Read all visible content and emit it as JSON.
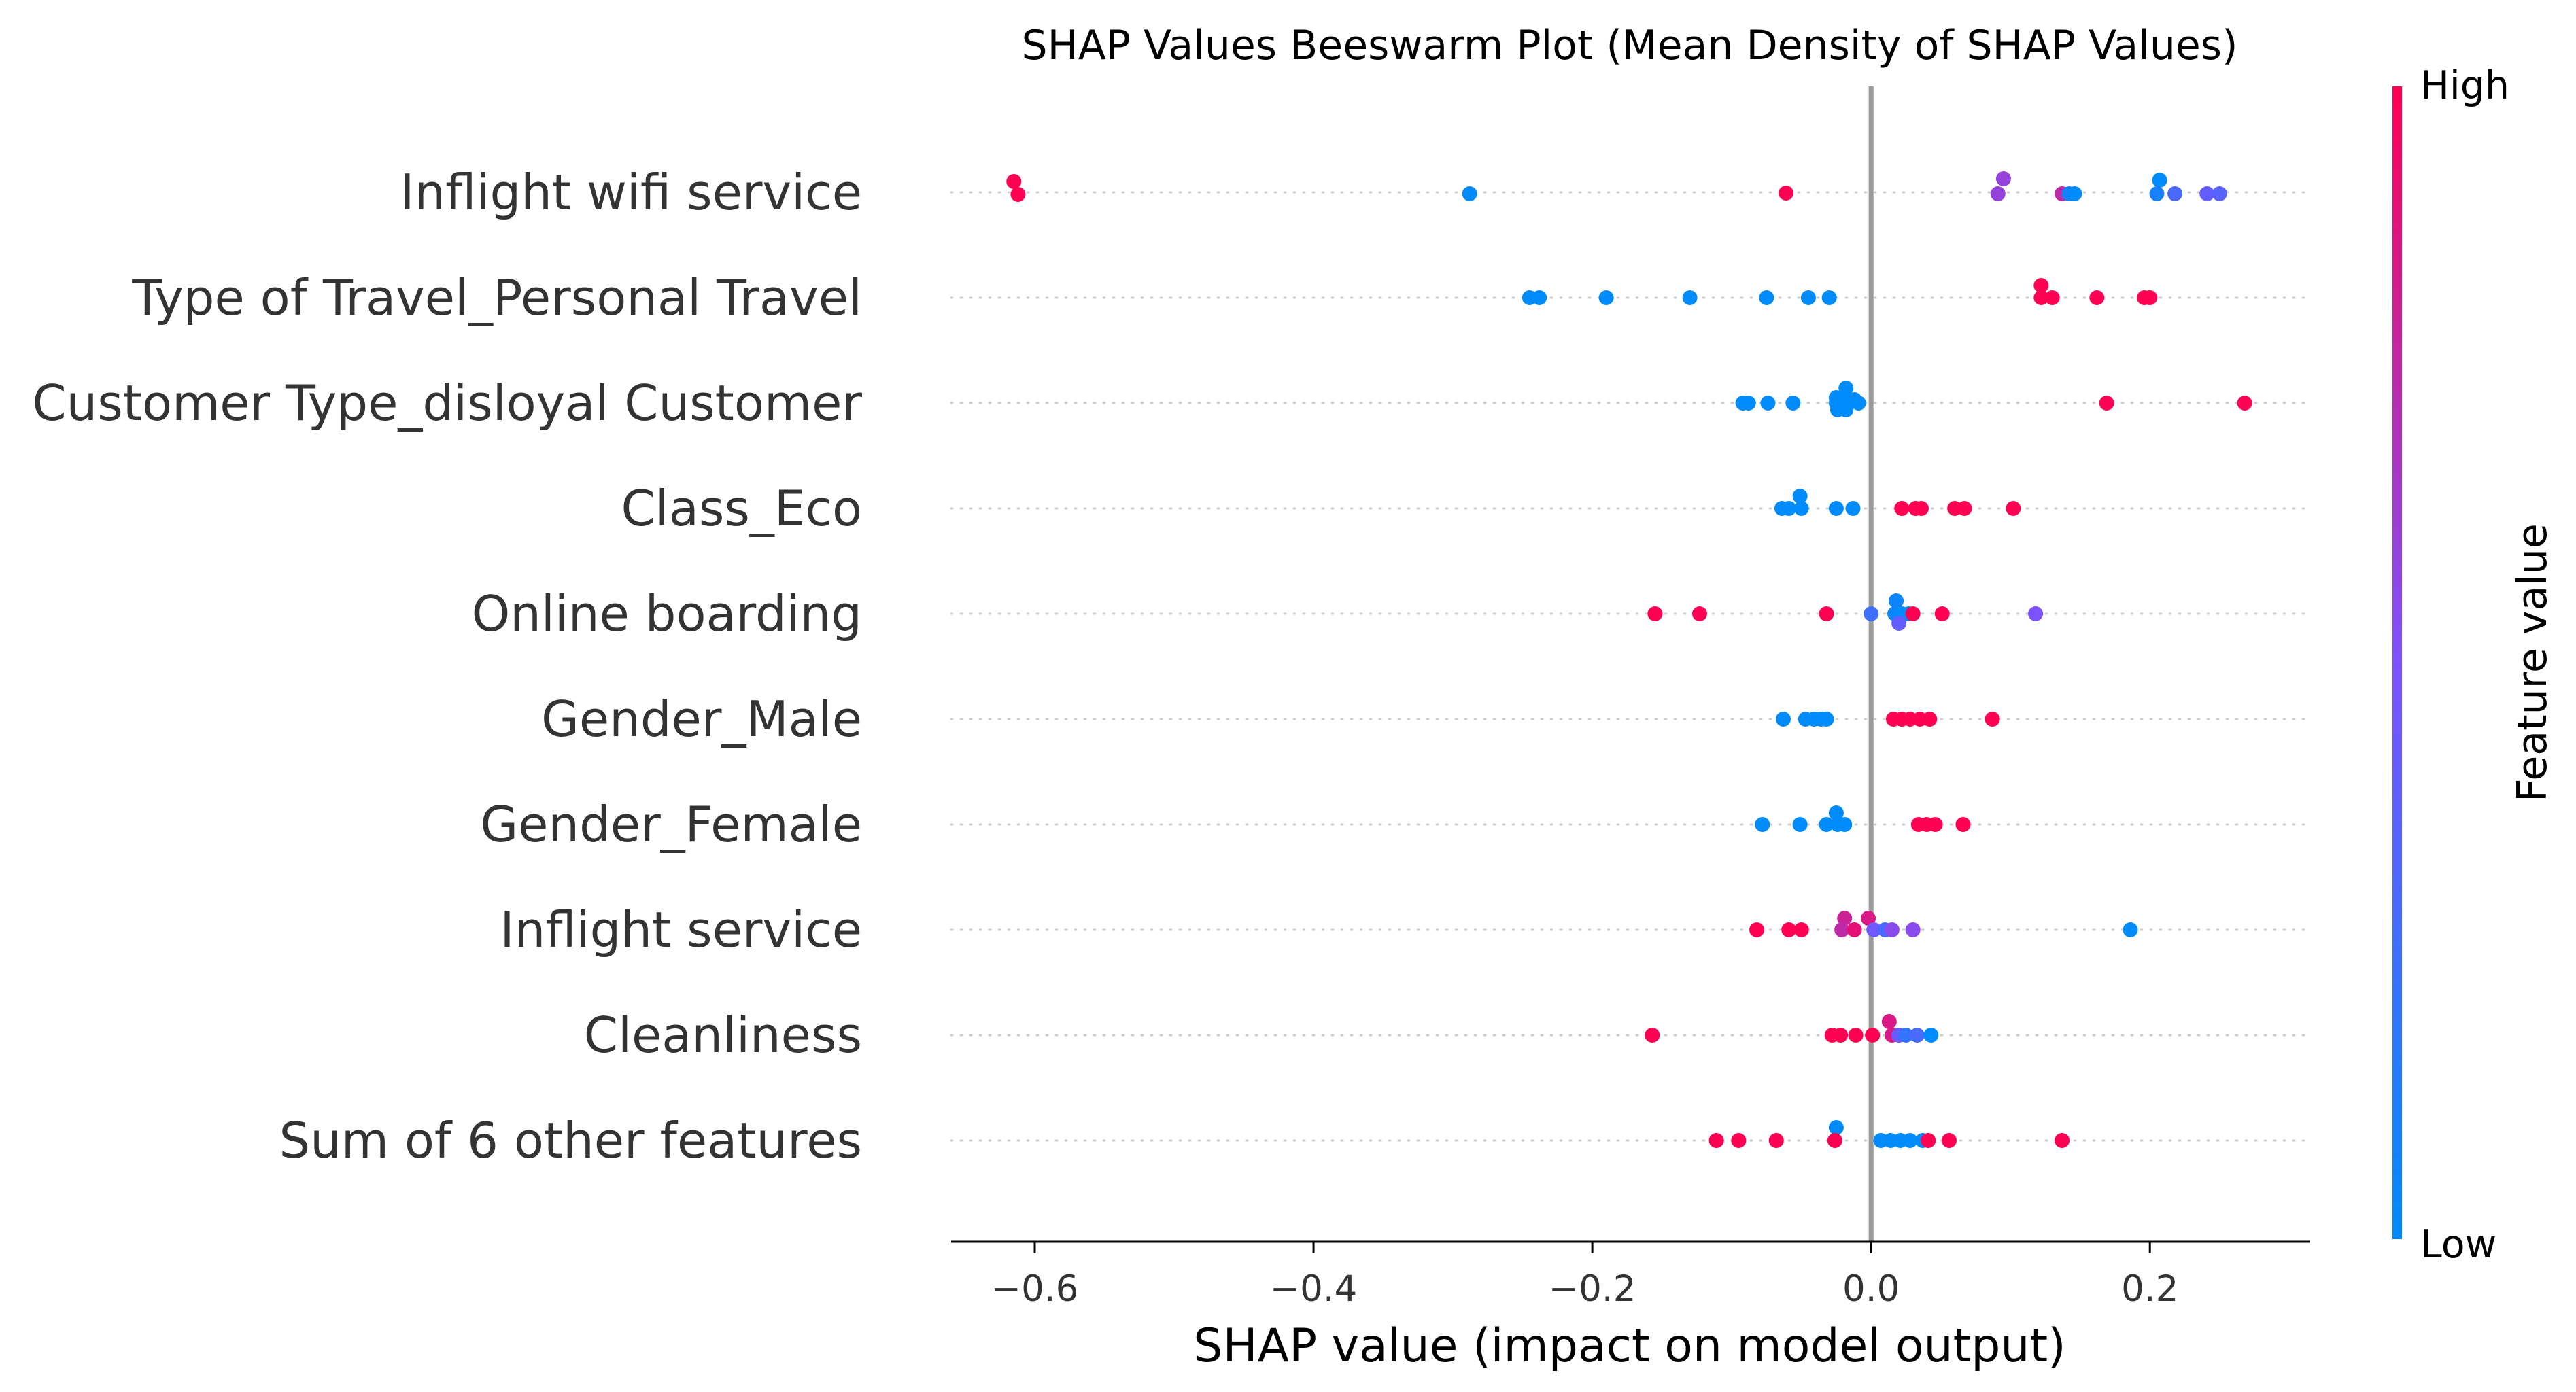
{
  "chart_data": {
    "type": "scatter",
    "title": "SHAP Values Beeswarm Plot (Mean Density of SHAP Values)",
    "xlabel": "SHAP value (impact on model output)",
    "xlim": [
      -0.66,
      0.315
    ],
    "xticks": [
      -0.6,
      -0.4,
      -0.2,
      0.0,
      0.2
    ],
    "xtick_labels": [
      "−0.6",
      "−0.4",
      "−0.2",
      "0.0",
      "0.2"
    ],
    "grid": "dotted horizontal rows",
    "zero_line": 0.0,
    "colorbar": {
      "label": "Feature value",
      "high_label": "High",
      "low_label": "Low",
      "low_color": "#008bfb",
      "mid_color": "#7c52ff",
      "high_color": "#ff0052"
    },
    "features": [
      {
        "name": "Inflight wifi service",
        "points": [
          [
            -0.615,
            1,
            0.16
          ],
          [
            -0.612,
            1,
            -0.03
          ],
          [
            -0.288,
            0,
            -0.02
          ],
          [
            -0.061,
            1,
            -0.01
          ],
          [
            0.095,
            0.6,
            0.2
          ],
          [
            0.091,
            0.6,
            -0.02
          ],
          [
            0.137,
            0.75,
            -0.02
          ],
          [
            0.142,
            0.1,
            -0.02
          ],
          [
            0.146,
            0,
            -0.02
          ],
          [
            0.207,
            0,
            0.18
          ],
          [
            0.205,
            0.1,
            -0.02
          ],
          [
            0.218,
            0.3,
            -0.02
          ],
          [
            0.241,
            0.4,
            -0.02
          ],
          [
            0.25,
            0.35,
            -0.02
          ]
        ]
      },
      {
        "name": "Type of Travel_Personal Travel",
        "points": [
          [
            -0.245,
            0,
            0
          ],
          [
            -0.238,
            0,
            0
          ],
          [
            -0.19,
            0,
            0
          ],
          [
            -0.13,
            0,
            0
          ],
          [
            -0.075,
            0,
            0
          ],
          [
            -0.045,
            0,
            0
          ],
          [
            -0.03,
            0,
            0
          ],
          [
            0.122,
            1,
            0.18
          ],
          [
            0.122,
            1,
            0
          ],
          [
            0.13,
            1,
            0
          ],
          [
            0.162,
            1,
            0
          ],
          [
            0.196,
            1,
            0
          ],
          [
            0.2,
            1,
            0
          ]
        ]
      },
      {
        "name": "Customer Type_disloyal Customer",
        "points": [
          [
            -0.092,
            0,
            0
          ],
          [
            -0.088,
            0,
            0
          ],
          [
            -0.074,
            0,
            0
          ],
          [
            -0.056,
            0,
            0
          ],
          [
            -0.025,
            0,
            0.08
          ],
          [
            -0.019,
            0,
            0.08
          ],
          [
            -0.018,
            0,
            0.22
          ],
          [
            -0.025,
            0,
            0
          ],
          [
            -0.019,
            0,
            0
          ],
          [
            -0.012,
            0,
            0.05
          ],
          [
            -0.009,
            0,
            0
          ],
          [
            -0.024,
            0,
            -0.1
          ],
          [
            -0.018,
            0,
            -0.1
          ],
          [
            0.169,
            1,
            0
          ],
          [
            0.268,
            1,
            0
          ]
        ]
      },
      {
        "name": "Class_Eco",
        "points": [
          [
            -0.051,
            0,
            0.18
          ],
          [
            -0.064,
            0,
            0
          ],
          [
            -0.059,
            0,
            0
          ],
          [
            -0.05,
            0,
            0
          ],
          [
            -0.025,
            0,
            0
          ],
          [
            -0.013,
            0,
            0
          ],
          [
            0.022,
            1,
            0
          ],
          [
            0.032,
            1,
            0
          ],
          [
            0.036,
            1,
            0
          ],
          [
            0.06,
            1,
            0
          ],
          [
            0.067,
            1,
            0
          ],
          [
            0.102,
            1,
            0
          ]
        ]
      },
      {
        "name": "Online boarding",
        "points": [
          [
            -0.155,
            1,
            0
          ],
          [
            -0.123,
            1,
            0
          ],
          [
            -0.032,
            1,
            0
          ],
          [
            0.0,
            0.25,
            0
          ],
          [
            0.018,
            0.05,
            0.19
          ],
          [
            0.017,
            0.05,
            0
          ],
          [
            0.022,
            0,
            0
          ],
          [
            0.027,
            0,
            0
          ],
          [
            0.03,
            1,
            0
          ],
          [
            0.02,
            0.4,
            -0.14
          ],
          [
            0.051,
            1,
            0
          ],
          [
            0.118,
            0.5,
            0
          ]
        ]
      },
      {
        "name": "Gender_Male",
        "points": [
          [
            -0.063,
            0,
            0
          ],
          [
            -0.047,
            0,
            0
          ],
          [
            -0.041,
            0,
            0
          ],
          [
            -0.036,
            0,
            0
          ],
          [
            -0.032,
            0,
            0
          ],
          [
            0.016,
            1,
            0
          ],
          [
            0.022,
            1,
            0
          ],
          [
            0.028,
            1,
            0
          ],
          [
            0.035,
            1,
            0
          ],
          [
            0.042,
            1,
            0
          ],
          [
            0.087,
            1,
            0
          ]
        ]
      },
      {
        "name": "Gender_Female",
        "points": [
          [
            -0.078,
            0,
            0
          ],
          [
            -0.051,
            0,
            0
          ],
          [
            -0.032,
            0,
            0
          ],
          [
            -0.025,
            0,
            0.17
          ],
          [
            -0.024,
            0,
            0
          ],
          [
            -0.019,
            0,
            0
          ],
          [
            0.034,
            1,
            0
          ],
          [
            0.04,
            1,
            0
          ],
          [
            0.046,
            1,
            0
          ],
          [
            0.066,
            1,
            0
          ]
        ]
      },
      {
        "name": "Inflight service",
        "points": [
          [
            -0.082,
            1,
            0
          ],
          [
            -0.059,
            1,
            0
          ],
          [
            -0.05,
            1,
            0
          ],
          [
            -0.019,
            0.8,
            0.17
          ],
          [
            -0.021,
            0.75,
            0
          ],
          [
            -0.012,
            0.9,
            0
          ],
          [
            -0.002,
            0.85,
            0.17
          ],
          [
            0.002,
            0.45,
            0
          ],
          [
            0.01,
            0.3,
            0
          ],
          [
            0.015,
            0.55,
            0
          ],
          [
            0.03,
            0.55,
            0
          ],
          [
            0.186,
            0,
            0
          ]
        ]
      },
      {
        "name": "Cleanliness",
        "points": [
          [
            -0.157,
            1,
            0
          ],
          [
            -0.028,
            1,
            0
          ],
          [
            -0.022,
            1,
            0
          ],
          [
            -0.011,
            1,
            0
          ],
          [
            0.001,
            1,
            0
          ],
          [
            0.013,
            0.85,
            0.2
          ],
          [
            0.015,
            0.85,
            0
          ],
          [
            0.02,
            0.4,
            0
          ],
          [
            0.025,
            0.2,
            0
          ],
          [
            0.033,
            0.3,
            0
          ],
          [
            0.043,
            0,
            0
          ]
        ]
      },
      {
        "name": "Sum of 6 other features",
        "points": [
          [
            -0.111,
            1,
            0
          ],
          [
            -0.095,
            1,
            0
          ],
          [
            -0.068,
            1,
            0
          ],
          [
            -0.025,
            0,
            0.19
          ],
          [
            -0.026,
            1,
            0
          ],
          [
            0.007,
            0,
            0
          ],
          [
            0.014,
            0,
            0
          ],
          [
            0.021,
            0,
            0
          ],
          [
            0.028,
            0,
            0
          ],
          [
            0.037,
            0,
            0
          ],
          [
            0.041,
            1,
            0
          ],
          [
            0.056,
            1,
            0
          ],
          [
            0.137,
            1,
            0
          ]
        ]
      }
    ]
  }
}
